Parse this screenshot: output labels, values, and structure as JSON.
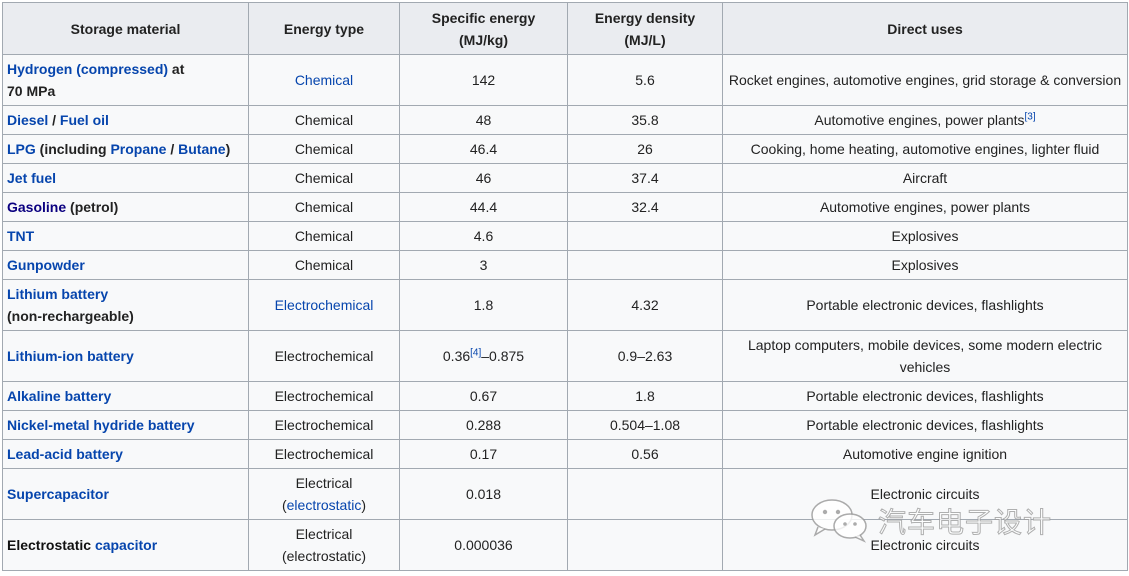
{
  "headers": {
    "material": "Storage material",
    "type": "Energy type",
    "specific_line1": "Specific energy",
    "specific_line2": "(MJ/kg)",
    "density_line1": "Energy density",
    "density_line2": "(MJ/L)",
    "uses": "Direct uses"
  },
  "rows": [
    {
      "m1": "Hydrogen (compressed)",
      "m2": " at",
      "m3": "70 MPa",
      "type": "Chemical",
      "spec": "142",
      "dens": "5.6",
      "uses": "Rocket engines, automotive engines, grid storage & conversion"
    },
    {
      "m1": "Diesel",
      "m2": " / ",
      "m3": "Fuel oil",
      "type": "Chemical",
      "spec": "48",
      "dens": "35.8",
      "uses": "Automotive engines, power plants",
      "uses_ref": "[3]"
    },
    {
      "m1": "LPG",
      "m2": " (including ",
      "m3": "Propane",
      "m4": " / ",
      "m5": "Butane",
      "m6": ")",
      "type": "Chemical",
      "spec": "46.4",
      "dens": "26",
      "uses": "Cooking, home heating, automotive engines, lighter fluid"
    },
    {
      "m1": "Jet fuel",
      "type": "Chemical",
      "spec": "46",
      "dens": "37.4",
      "uses": "Aircraft"
    },
    {
      "m1": "Gasoline",
      "m2": " (petrol)",
      "type": "Chemical",
      "spec": "44.4",
      "dens": "32.4",
      "uses": "Automotive engines, power plants"
    },
    {
      "m1": "TNT",
      "type": "Chemical",
      "spec": "4.6",
      "dens": "",
      "uses": "Explosives"
    },
    {
      "m1": "Gunpowder",
      "type": "Chemical",
      "spec": "3",
      "dens": "",
      "uses": "Explosives"
    },
    {
      "m1": "Lithium battery",
      "m2": "(non-rechargeable)",
      "type": "Electrochemical",
      "spec": "1.8",
      "dens": "4.32",
      "uses": "Portable electronic devices, flashlights"
    },
    {
      "m1": "Lithium-ion battery",
      "type": "Electrochemical",
      "spec_a": "0.36",
      "spec_ref": "[4]",
      "spec_b": "–0.875",
      "dens": "0.9–2.63",
      "uses": "Laptop computers, mobile devices, some modern electric vehicles"
    },
    {
      "m1": "Alkaline battery",
      "type": "Electrochemical",
      "spec": "0.67",
      "dens": "1.8",
      "uses": "Portable electronic devices, flashlights"
    },
    {
      "m1": "Nickel-metal hydride battery",
      "type": "Electrochemical",
      "spec": "0.288",
      "dens": "0.504–1.08",
      "uses": "Portable electronic devices, flashlights"
    },
    {
      "m1": "Lead-acid battery",
      "type": "Electrochemical",
      "spec": "0.17",
      "dens": "0.56",
      "uses": "Automotive engine ignition"
    },
    {
      "m1": "Supercapacitor",
      "type_a": "Electrical",
      "type_b": "(",
      "type_c": "electrostatic",
      "type_d": ")",
      "spec": "0.018",
      "dens": "",
      "uses": "Electronic circuits"
    },
    {
      "m1": "Electrostatic ",
      "m2": "capacitor",
      "type_a": "Electrical",
      "type_b": "(electrostatic)",
      "spec": "0.000036",
      "dens": "",
      "uses": "Electronic circuits"
    }
  ],
  "watermark": "汽车电子设计",
  "watermark_icon": "wechat-icon"
}
